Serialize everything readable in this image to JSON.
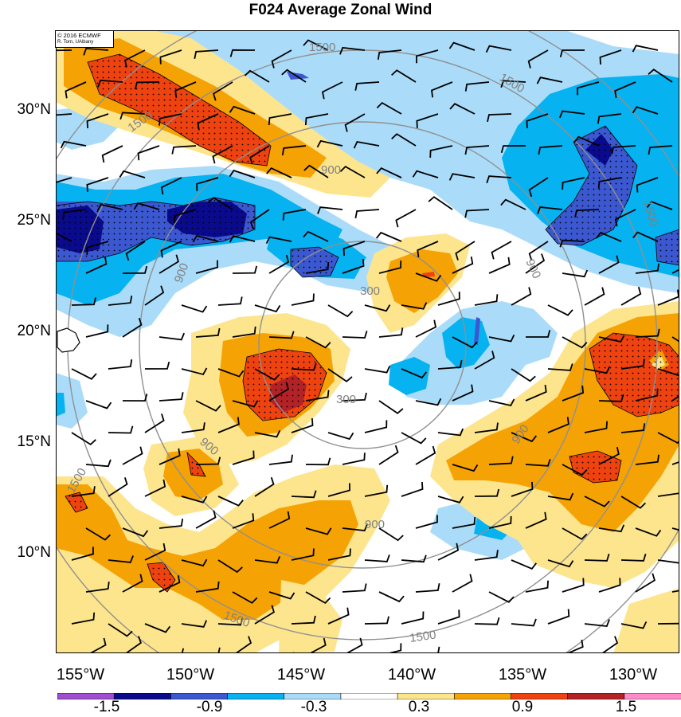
{
  "title": "F024 Average Zonal Wind",
  "credit": {
    "line1": "© 2016 ECMWF",
    "line2": "R. Torn, UAlbany"
  },
  "lat_labels": [
    "30°N",
    "25°N",
    "20°N",
    "15°N",
    "10°N"
  ],
  "lon_labels": [
    "155°W",
    "150°W",
    "145°W",
    "140°W",
    "135°W",
    "130°W"
  ],
  "contour_labels": [
    "1500",
    "1500",
    "1500",
    "900",
    "900",
    "900",
    "900",
    "900",
    "300",
    "300",
    "1500",
    "1500",
    "1500",
    "1500",
    "900"
  ],
  "colorbar": {
    "labels": [
      "-1.5",
      "-0.9",
      "-0.3",
      "0.3",
      "0.9",
      "1.5"
    ],
    "colors": [
      "#a04ed0",
      "#0a0a8c",
      "#3c58d0",
      "#06b2f0",
      "#aadcfa",
      "#ffffff",
      "#fde58e",
      "#f5a205",
      "#ee4310",
      "#b22226",
      "#ff8cc8"
    ]
  },
  "colors": {
    "neg3": "#0a0a8c",
    "neg2": "#3c58d0",
    "neg1": "#06b2f0",
    "neg0": "#aadcfa",
    "pos0": "#fde58e",
    "pos1": "#f5a205",
    "pos2": "#ee4310",
    "pos3": "#b22226",
    "contour": "#909090"
  }
}
